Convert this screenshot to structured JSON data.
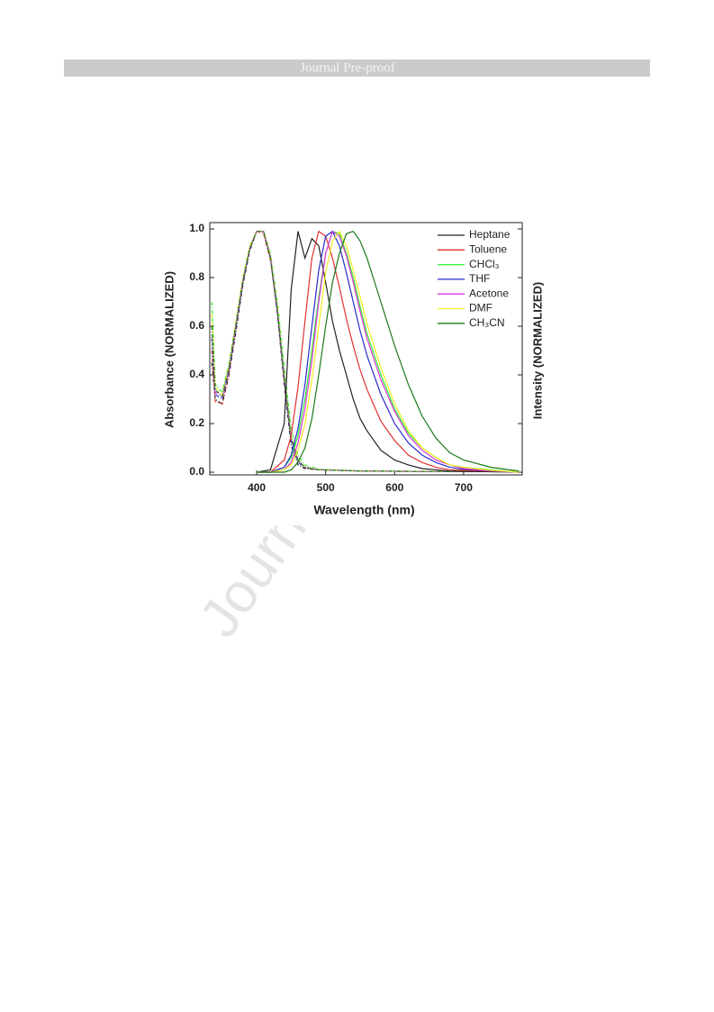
{
  "header": {
    "title": "Journal Pre-proof"
  },
  "watermark": "Journal Pre-proof",
  "chart_data": {
    "type": "line",
    "x_label": "Wavelength (nm)",
    "y_label": "Absorbance (NORMALIZED)",
    "y2_label": "Intensity (NORMALIZED)",
    "xlim": [
      332,
      785
    ],
    "ylim": [
      -0.011,
      1.026
    ],
    "xticks": [
      400,
      500,
      600,
      700
    ],
    "yticks": [
      {
        "value": 0,
        "label": "0.0"
      },
      0.2,
      0.4,
      0.6,
      0.8,
      {
        "value": 1,
        "label": "1.0"
      }
    ],
    "legend": "upper right",
    "emission_x": [
      400,
      420,
      440,
      450,
      460,
      470,
      480,
      490,
      500,
      510,
      520,
      530,
      540,
      550,
      560,
      580,
      600,
      620,
      640,
      660,
      680,
      700,
      740,
      780
    ],
    "series": [
      {
        "name": "Heptane",
        "color": "#222222",
        "values": [
          0,
          0.01,
          0.2,
          0.75,
          0.99,
          0.88,
          0.96,
          0.93,
          0.78,
          0.62,
          0.5,
          0.4,
          0.3,
          0.22,
          0.17,
          0.09,
          0.05,
          0.03,
          0.015,
          0.01,
          0.005,
          0.003,
          0.002,
          0
        ]
      },
      {
        "name": "Toluene",
        "color": "#e03030",
        "values": [
          0,
          0,
          0.05,
          0.15,
          0.35,
          0.62,
          0.88,
          0.99,
          0.97,
          0.88,
          0.76,
          0.63,
          0.52,
          0.42,
          0.34,
          0.21,
          0.13,
          0.07,
          0.04,
          0.02,
          0.01,
          0.008,
          0.004,
          0
        ]
      },
      {
        "name": "CHCl₃",
        "color": "#33ee33",
        "values": [
          0,
          0,
          0.02,
          0.06,
          0.15,
          0.3,
          0.5,
          0.72,
          0.9,
          0.99,
          0.98,
          0.9,
          0.8,
          0.68,
          0.57,
          0.4,
          0.26,
          0.16,
          0.1,
          0.06,
          0.03,
          0.02,
          0.01,
          0
        ]
      },
      {
        "name": "THF",
        "color": "#2a2acc",
        "values": [
          0,
          0,
          0.02,
          0.07,
          0.18,
          0.36,
          0.6,
          0.83,
          0.97,
          0.99,
          0.93,
          0.82,
          0.7,
          0.58,
          0.48,
          0.32,
          0.2,
          0.12,
          0.07,
          0.04,
          0.02,
          0.012,
          0.005,
          0
        ]
      },
      {
        "name": "Acetone",
        "color": "#dd33dd",
        "values": [
          0,
          0,
          0.01,
          0.04,
          0.12,
          0.26,
          0.46,
          0.7,
          0.9,
          0.99,
          0.97,
          0.89,
          0.78,
          0.66,
          0.55,
          0.38,
          0.25,
          0.15,
          0.09,
          0.05,
          0.03,
          0.015,
          0.006,
          0
        ]
      },
      {
        "name": "DMF",
        "color": "#f0f020",
        "values": [
          0,
          0,
          0.01,
          0.03,
          0.09,
          0.2,
          0.38,
          0.6,
          0.82,
          0.95,
          0.99,
          0.93,
          0.83,
          0.72,
          0.61,
          0.43,
          0.28,
          0.17,
          0.1,
          0.06,
          0.03,
          0.02,
          0.008,
          0
        ]
      },
      {
        "name": "CH₃CN",
        "color": "#1a7a1a",
        "values": [
          0,
          0,
          0,
          0.01,
          0.04,
          0.1,
          0.22,
          0.4,
          0.6,
          0.78,
          0.9,
          0.98,
          0.99,
          0.95,
          0.88,
          0.7,
          0.52,
          0.36,
          0.23,
          0.14,
          0.08,
          0.05,
          0.02,
          0.005
        ]
      }
    ],
    "absorption_x": [
      335,
      340,
      350,
      360,
      370,
      380,
      390,
      400,
      410,
      420,
      430,
      440,
      450,
      460,
      470,
      490,
      550,
      650,
      780
    ],
    "absorption": [
      {
        "color": "#222222",
        "values": [
          0.45,
          0.3,
          0.28,
          0.4,
          0.58,
          0.77,
          0.91,
          0.99,
          0.99,
          0.88,
          0.65,
          0.36,
          0.11,
          0.03,
          0.015,
          0.01,
          0.005,
          0.003,
          0.002
        ]
      },
      {
        "color": "#e03030",
        "values": [
          0.5,
          0.29,
          0.28,
          0.41,
          0.6,
          0.78,
          0.92,
          0.99,
          0.98,
          0.87,
          0.66,
          0.38,
          0.14,
          0.05,
          0.02,
          0.01,
          0.005,
          0.003,
          0.002
        ]
      },
      {
        "color": "#33ee33",
        "values": [
          0.7,
          0.36,
          0.33,
          0.45,
          0.62,
          0.8,
          0.93,
          0.99,
          0.99,
          0.9,
          0.7,
          0.43,
          0.18,
          0.07,
          0.03,
          0.012,
          0.006,
          0.003,
          0.002
        ]
      },
      {
        "color": "#2a2acc",
        "values": [
          0.55,
          0.32,
          0.3,
          0.42,
          0.6,
          0.78,
          0.92,
          0.99,
          0.99,
          0.88,
          0.66,
          0.38,
          0.13,
          0.04,
          0.02,
          0.01,
          0.005,
          0.003,
          0.002
        ]
      },
      {
        "color": "#dd33dd",
        "values": [
          0.6,
          0.33,
          0.31,
          0.43,
          0.61,
          0.79,
          0.92,
          0.99,
          0.99,
          0.89,
          0.67,
          0.39,
          0.14,
          0.05,
          0.02,
          0.01,
          0.005,
          0.003,
          0.002
        ]
      },
      {
        "color": "#f0f020",
        "values": [
          0.65,
          0.35,
          0.32,
          0.44,
          0.62,
          0.8,
          0.93,
          0.99,
          0.99,
          0.89,
          0.68,
          0.4,
          0.15,
          0.05,
          0.02,
          0.01,
          0.005,
          0.003,
          0.002
        ]
      },
      {
        "color": "#1a7a1a",
        "values": [
          0.6,
          0.34,
          0.31,
          0.43,
          0.61,
          0.79,
          0.92,
          0.99,
          0.99,
          0.88,
          0.67,
          0.39,
          0.14,
          0.05,
          0.02,
          0.01,
          0.005,
          0.003,
          0.002
        ]
      }
    ]
  }
}
